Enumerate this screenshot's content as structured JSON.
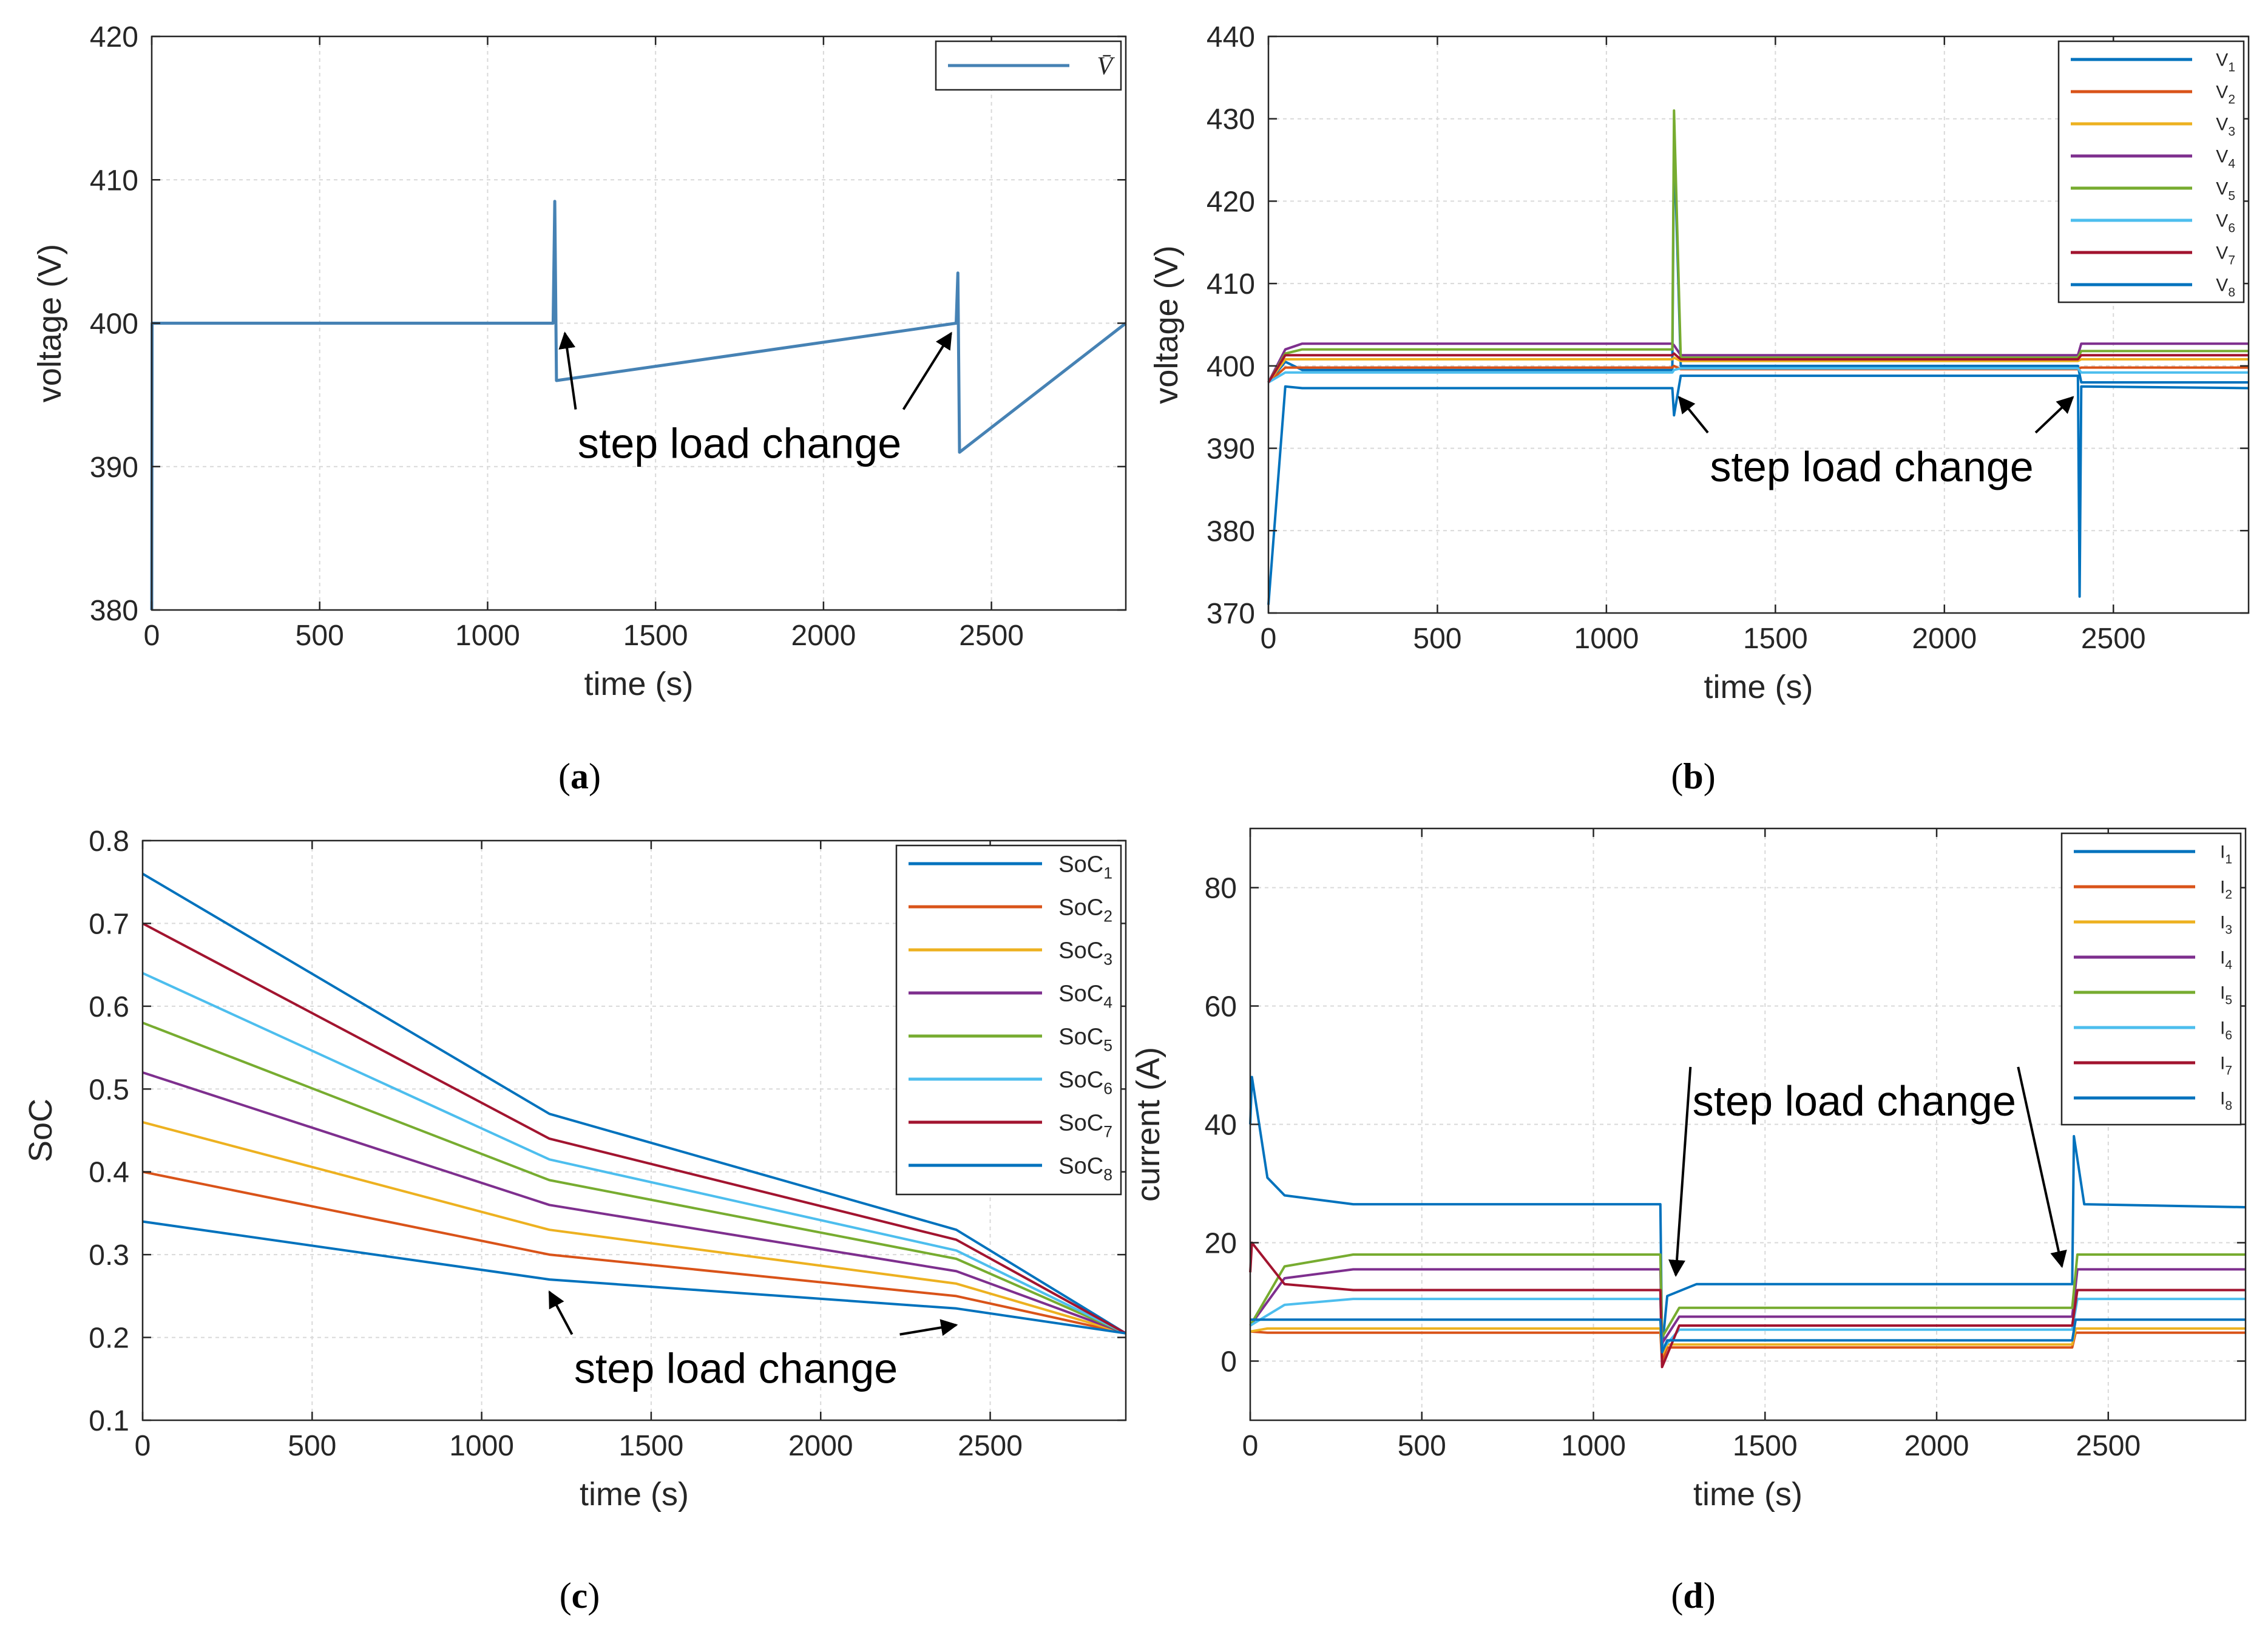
{
  "colors": {
    "s1": "#0072BD",
    "s2": "#D95319",
    "s3": "#EDB120",
    "s4": "#7E2F8E",
    "s5": "#77AC30",
    "s6": "#4DBEEE",
    "s7": "#A2142F",
    "s8": "#0072BD",
    "grid": "#d9d9d9",
    "axis": "#262626",
    "spike": "#4682B4"
  },
  "panels": [
    {
      "letter": "a"
    },
    {
      "letter": "b"
    },
    {
      "letter": "c"
    },
    {
      "letter": "d"
    }
  ],
  "chart_data": [
    {
      "id": "a",
      "type": "line",
      "xlabel": "time (s)",
      "ylabel": "voltage (V)",
      "xlim": [
        0,
        2900
      ],
      "ylim": [
        380,
        420
      ],
      "xticks": [
        0,
        500,
        1000,
        1500,
        2000,
        2500
      ],
      "yticks": [
        380,
        390,
        400,
        410,
        420
      ],
      "grid": true,
      "legend": {
        "position": "top-right",
        "entries": [
          "V̄"
        ]
      },
      "series": [
        {
          "name": "V̄",
          "x": [
            0,
            1,
            1195,
            1200,
            1205,
            2395,
            2400,
            2405,
            2900
          ],
          "y": [
            380,
            400,
            400,
            408.5,
            396,
            400,
            403.5,
            391,
            400
          ]
        }
      ],
      "annotations": [
        {
          "text": "step load change",
          "x": 1750,
          "y": 390.6,
          "arrows": [
            [
              1230,
              399.3
            ],
            [
              2380,
              399.3
            ]
          ]
        }
      ]
    },
    {
      "id": "b",
      "type": "line",
      "xlabel": "time (s)",
      "ylabel": "voltage (V)",
      "xlim": [
        0,
        2900
      ],
      "ylim": [
        370,
        440
      ],
      "xticks": [
        0,
        500,
        1000,
        1500,
        2000,
        2500
      ],
      "yticks": [
        370,
        380,
        390,
        400,
        410,
        420,
        430,
        440
      ],
      "grid": true,
      "legend": {
        "position": "top-right",
        "entries": [
          "V1",
          "V2",
          "V3",
          "V4",
          "V5",
          "V6",
          "V7",
          "V8"
        ]
      },
      "series": [
        {
          "name": "V1",
          "x": [
            0,
            50,
            100,
            1195,
            1200,
            1220,
            2395,
            2405,
            2900
          ],
          "y": [
            398,
            400.5,
            399.5,
            399.5,
            428,
            400,
            400,
            398,
            398
          ]
        },
        {
          "name": "V2",
          "x": [
            0,
            50,
            100,
            1195,
            1200,
            1220,
            2395,
            2405,
            2900
          ],
          "y": [
            398,
            399.8,
            399.8,
            399.8,
            400,
            399.6,
            399.6,
            399.8,
            399.8
          ]
        },
        {
          "name": "V3",
          "x": [
            0,
            50,
            100,
            1195,
            1200,
            1220,
            2395,
            2405,
            2900
          ],
          "y": [
            398,
            400.8,
            400.8,
            400.8,
            401,
            400.6,
            400.6,
            400.8,
            400.8
          ]
        },
        {
          "name": "V4",
          "x": [
            0,
            50,
            100,
            1195,
            1200,
            1220,
            2395,
            2405,
            2900
          ],
          "y": [
            398,
            402,
            402.7,
            402.7,
            402.5,
            401.3,
            401.3,
            402.7,
            402.7
          ]
        },
        {
          "name": "V5",
          "x": [
            0,
            50,
            100,
            1195,
            1200,
            1220,
            2395,
            2405,
            2900
          ],
          "y": [
            398,
            401.5,
            402,
            402,
            431,
            401,
            401,
            401.8,
            401.8
          ]
        },
        {
          "name": "V6",
          "x": [
            0,
            50,
            100,
            1195,
            1200,
            1220,
            2395,
            2405,
            2900
          ],
          "y": [
            398,
            399.2,
            399.2,
            399.2,
            399.5,
            399.7,
            399.7,
            399.2,
            399.2
          ]
        },
        {
          "name": "V7",
          "x": [
            0,
            50,
            100,
            1195,
            1200,
            1220,
            2395,
            2405,
            2900
          ],
          "y": [
            398,
            401.3,
            401.3,
            401.3,
            401.5,
            400.8,
            400.8,
            401.3,
            401.3
          ]
        },
        {
          "name": "V8",
          "x": [
            0,
            50,
            100,
            1195,
            1200,
            1220,
            2395,
            2400,
            2405,
            2900
          ],
          "y": [
            371,
            397.5,
            397.3,
            397.3,
            394,
            398.8,
            398.8,
            372,
            397.5,
            397.3
          ]
        }
      ],
      "annotations": [
        {
          "text": "step load change",
          "x": 1785,
          "y": 386,
          "arrows": [
            [
              1215,
              396.2
            ],
            [
              2380,
              396.2
            ]
          ]
        }
      ]
    },
    {
      "id": "c",
      "type": "line",
      "xlabel": "time (s)",
      "ylabel": "SoC",
      "xlim": [
        0,
        2900
      ],
      "ylim": [
        0.1,
        0.8
      ],
      "xticks": [
        0,
        500,
        1000,
        1500,
        2000,
        2500
      ],
      "yticks": [
        0.1,
        0.2,
        0.3,
        0.4,
        0.5,
        0.6,
        0.7,
        0.8
      ],
      "grid": true,
      "legend": {
        "position": "top-right",
        "entries": [
          "SoC1",
          "SoC2",
          "SoC3",
          "SoC4",
          "SoC5",
          "SoC6",
          "SoC7",
          "SoC8"
        ]
      },
      "series": [
        {
          "name": "SoC1",
          "x": [
            0,
            1200,
            2400,
            2900
          ],
          "y": [
            0.76,
            0.47,
            0.33,
            0.205
          ]
        },
        {
          "name": "SoC2",
          "x": [
            0,
            1200,
            2400,
            2900
          ],
          "y": [
            0.4,
            0.3,
            0.25,
            0.205
          ]
        },
        {
          "name": "SoC3",
          "x": [
            0,
            1200,
            2400,
            2900
          ],
          "y": [
            0.46,
            0.33,
            0.265,
            0.205
          ]
        },
        {
          "name": "SoC4",
          "x": [
            0,
            1200,
            2400,
            2900
          ],
          "y": [
            0.52,
            0.36,
            0.28,
            0.205
          ]
        },
        {
          "name": "SoC5",
          "x": [
            0,
            1200,
            2400,
            2900
          ],
          "y": [
            0.58,
            0.39,
            0.295,
            0.205
          ]
        },
        {
          "name": "SoC6",
          "x": [
            0,
            1200,
            2400,
            2900
          ],
          "y": [
            0.64,
            0.415,
            0.305,
            0.205
          ]
        },
        {
          "name": "SoC7",
          "x": [
            0,
            1200,
            2400,
            2900
          ],
          "y": [
            0.7,
            0.44,
            0.318,
            0.205
          ]
        },
        {
          "name": "SoC8",
          "x": [
            0,
            1200,
            2400,
            2900
          ],
          "y": [
            0.34,
            0.27,
            0.235,
            0.205
          ]
        }
      ],
      "annotations": [
        {
          "text": "step load change",
          "x": 1750,
          "y": 0.145,
          "arrows": [
            [
              1200,
              0.255
            ],
            [
              2400,
              0.215
            ]
          ]
        }
      ]
    },
    {
      "id": "d",
      "type": "line",
      "xlabel": "time (s)",
      "ylabel": "current (A)",
      "xlim": [
        0,
        2900
      ],
      "ylim": [
        -10,
        90
      ],
      "xticks": [
        0,
        500,
        1000,
        1500,
        2000,
        2500
      ],
      "yticks": [
        0,
        20,
        40,
        60,
        80
      ],
      "grid": true,
      "legend": {
        "position": "top-right",
        "entries": [
          "I1",
          "I2",
          "I3",
          "I4",
          "I5",
          "I6",
          "I7",
          "I8"
        ]
      },
      "series": [
        {
          "name": "I1",
          "x": [
            0,
            5,
            50,
            100,
            300,
            1195,
            1200,
            1215,
            1300,
            2395,
            2400,
            2430,
            2900
          ],
          "y": [
            40,
            48,
            31,
            28,
            26.5,
            26.5,
            2,
            11,
            13,
            13,
            38,
            26.5,
            26
          ]
        },
        {
          "name": "I2",
          "x": [
            0,
            50,
            1195,
            1200,
            1215,
            2395,
            2405,
            2900
          ],
          "y": [
            5,
            4.8,
            4.8,
            0,
            2.3,
            2.3,
            4.8,
            4.8
          ]
        },
        {
          "name": "I3",
          "x": [
            0,
            50,
            1195,
            1200,
            1215,
            2395,
            2405,
            2900
          ],
          "y": [
            5,
            5.5,
            5.5,
            1,
            2.8,
            2.8,
            5.5,
            5.5
          ]
        },
        {
          "name": "I4",
          "x": [
            0,
            100,
            300,
            1195,
            1200,
            1250,
            2395,
            2410,
            2900
          ],
          "y": [
            6,
            14,
            15.5,
            15.5,
            3,
            7.5,
            7.5,
            15.5,
            15.5
          ]
        },
        {
          "name": "I5",
          "x": [
            0,
            100,
            300,
            1195,
            1200,
            1250,
            2395,
            2410,
            2900
          ],
          "y": [
            6,
            16,
            18,
            18,
            4,
            9,
            9,
            18,
            18
          ]
        },
        {
          "name": "I6",
          "x": [
            0,
            100,
            300,
            1195,
            1200,
            1250,
            2395,
            2410,
            2900
          ],
          "y": [
            6,
            9.5,
            10.5,
            10.5,
            2,
            5.3,
            5.3,
            10.5,
            10.5
          ]
        },
        {
          "name": "I7",
          "x": [
            0,
            5,
            100,
            300,
            1195,
            1200,
            1250,
            2395,
            2410,
            2900
          ],
          "y": [
            15,
            20,
            13,
            12,
            12,
            -1,
            6,
            6,
            12,
            12
          ]
        },
        {
          "name": "I8",
          "x": [
            0,
            50,
            1195,
            1200,
            1215,
            2395,
            2405,
            2900
          ],
          "y": [
            7,
            7,
            7,
            1.5,
            3.5,
            3.5,
            7,
            7
          ]
        }
      ],
      "annotations": [
        {
          "text": "step load change",
          "x": 1760,
          "y": 41.5,
          "arrows": [
            [
              1240,
              14.5
            ],
            [
              2365,
              16
            ]
          ]
        }
      ]
    }
  ]
}
